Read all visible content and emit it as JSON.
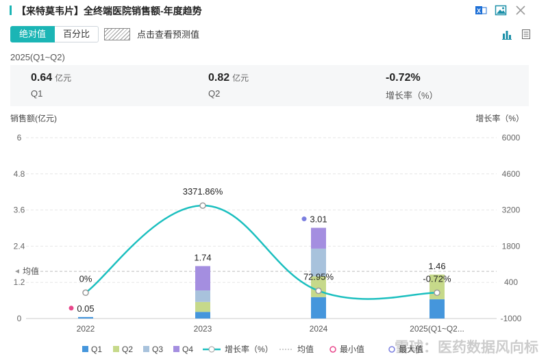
{
  "header": {
    "title": "【来特莫韦片】全终端医院销售额-年度趋势",
    "icons": [
      "excel-export-icon",
      "image-export-icon",
      "close-icon"
    ]
  },
  "toggle": {
    "absolute": "绝对值",
    "percent": "百分比"
  },
  "forecast_label": "点击查看预测值",
  "view_icons": [
    "bar-chart-icon",
    "table-icon"
  ],
  "period": "2025(Q1~Q2)",
  "summary": [
    {
      "value": "0.64",
      "unit": "亿元",
      "label": "Q1"
    },
    {
      "value": "0.82",
      "unit": "亿元",
      "label": "Q2"
    },
    {
      "value": "-0.72%",
      "unit": "",
      "label": "增长率（%）"
    }
  ],
  "colors": {
    "accent": "#1bb5b5",
    "Q1": "#4596dc",
    "Q2": "#c6d98a",
    "Q3": "#a8c2dc",
    "Q4": "#a48ee0",
    "growth": "#1bbfbf",
    "min": "#e8478b",
    "max": "#7b7fe0"
  },
  "chart_data": {
    "type": "bar",
    "stacked": true,
    "ylabel": "销售额(亿元)",
    "y2label": "增长率（%）",
    "ylim": [
      0,
      6
    ],
    "yticks": [
      "0",
      "1.2",
      "2.4",
      "3.6",
      "4.8",
      "6"
    ],
    "y2lim": [
      -1000,
      6000
    ],
    "y2ticks": [
      "-1000",
      "400",
      "1800",
      "3200",
      "4600",
      "6000"
    ],
    "categories": [
      "2022",
      "2023",
      "2024",
      "2025(Q1~Q2..."
    ],
    "series": [
      {
        "name": "Q1",
        "values": [
          0.05,
          0.22,
          0.71,
          0.64
        ]
      },
      {
        "name": "Q2",
        "values": [
          0,
          0.33,
          0.69,
          0.82
        ]
      },
      {
        "name": "Q3",
        "values": [
          0,
          0.38,
          0.92,
          0
        ]
      },
      {
        "name": "Q4",
        "values": [
          0,
          0.81,
          0.69,
          0
        ]
      }
    ],
    "totals": [
      "0.05",
      "1.74",
      "3.01",
      "1.46"
    ],
    "growth": {
      "name": "增长率（%）",
      "values": [
        0,
        3371.86,
        72.95,
        -0.72
      ],
      "labels": [
        "0%",
        "3371.86%",
        "72.95%",
        "-0.72%"
      ]
    },
    "mean": {
      "label": "均值",
      "value": 1.565
    },
    "min_label_index": 0,
    "max_label_index": 2,
    "legend": [
      "Q1",
      "Q2",
      "Q3",
      "Q4",
      "增长率（%）",
      "均值",
      "最小值",
      "最大值"
    ],
    "watermark": "雪球：医药数据风向标"
  }
}
